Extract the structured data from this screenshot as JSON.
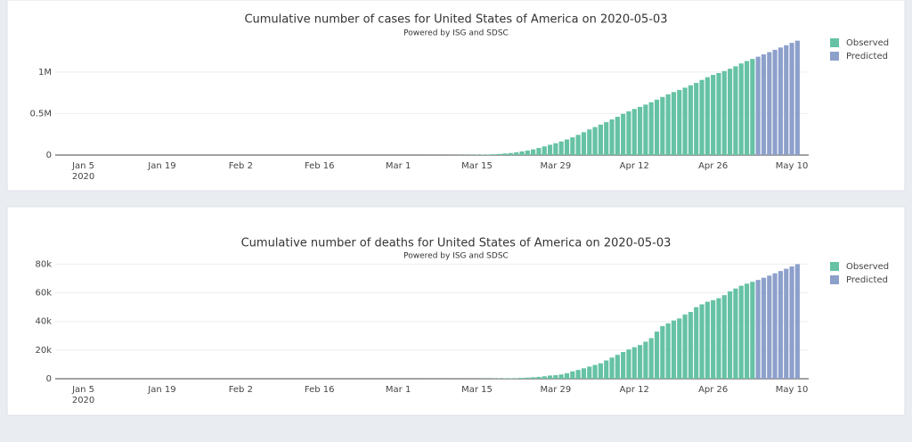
{
  "chart_data": [
    {
      "type": "bar",
      "title": "Cumulative number of cases for United States of America on 2020-05-03",
      "subtitle": "Powered by ISG and SDSC",
      "x": [
        "2020-03-01",
        "2020-03-02",
        "2020-03-03",
        "2020-03-04",
        "2020-03-05",
        "2020-03-06",
        "2020-03-07",
        "2020-03-08",
        "2020-03-09",
        "2020-03-10",
        "2020-03-11",
        "2020-03-12",
        "2020-03-13",
        "2020-03-14",
        "2020-03-15",
        "2020-03-16",
        "2020-03-17",
        "2020-03-18",
        "2020-03-19",
        "2020-03-20",
        "2020-03-21",
        "2020-03-22",
        "2020-03-23",
        "2020-03-24",
        "2020-03-25",
        "2020-03-26",
        "2020-03-27",
        "2020-03-28",
        "2020-03-29",
        "2020-03-30",
        "2020-03-31",
        "2020-04-01",
        "2020-04-02",
        "2020-04-03",
        "2020-04-04",
        "2020-04-05",
        "2020-04-06",
        "2020-04-07",
        "2020-04-08",
        "2020-04-09",
        "2020-04-10",
        "2020-04-11",
        "2020-04-12",
        "2020-04-13",
        "2020-04-14",
        "2020-04-15",
        "2020-04-16",
        "2020-04-17",
        "2020-04-18",
        "2020-04-19",
        "2020-04-20",
        "2020-04-21",
        "2020-04-22",
        "2020-04-23",
        "2020-04-24",
        "2020-04-25",
        "2020-04-26",
        "2020-04-27",
        "2020-04-28",
        "2020-04-29",
        "2020-04-30",
        "2020-05-01",
        "2020-05-02",
        "2020-05-03",
        "2020-05-04",
        "2020-05-05",
        "2020-05-06",
        "2020-05-07",
        "2020-05-08",
        "2020-05-09",
        "2020-05-10",
        "2020-05-11"
      ],
      "series": [
        {
          "name": "Observed",
          "color": "#66c2a5",
          "values": [
            75,
            100,
            124,
            158,
            221,
            319,
            435,
            541,
            704,
            994,
            1301,
            1630,
            2183,
            2770,
            3613,
            4596,
            6344,
            9197,
            13779,
            19367,
            24192,
            33592,
            43781,
            54856,
            68211,
            85435,
            104126,
            123578,
            142460,
            163955,
            188172,
            213372,
            243453,
            275586,
            308850,
            337072,
            366667,
            396223,
            429052,
            461437,
            496535,
            526396,
            555313,
            580619,
            607670,
            636350,
            667592,
            699706,
            732197,
            759086,
            784326,
            811865,
            840351,
            869170,
            905358,
            938154,
            965785,
            988197,
            1012582,
            1039909,
            1069424,
            1103461,
            1132539,
            1158040,
            null,
            null,
            null,
            null,
            null,
            null,
            null,
            null
          ]
        },
        {
          "name": "Predicted",
          "color": "#8da0cb",
          "values": [
            null,
            null,
            null,
            null,
            null,
            null,
            null,
            null,
            null,
            null,
            null,
            null,
            null,
            null,
            null,
            null,
            null,
            null,
            null,
            null,
            null,
            null,
            null,
            null,
            null,
            null,
            null,
            null,
            null,
            null,
            null,
            null,
            null,
            null,
            null,
            null,
            null,
            null,
            null,
            null,
            null,
            null,
            null,
            null,
            null,
            null,
            null,
            null,
            null,
            null,
            null,
            null,
            null,
            null,
            null,
            null,
            null,
            null,
            null,
            null,
            null,
            null,
            null,
            null,
            1185000,
            1213000,
            1240000,
            1268000,
            1296000,
            1323000,
            1351000,
            1378000
          ]
        }
      ],
      "xlim": [
        "2019-12-31",
        "2020-05-13"
      ],
      "xticks": [
        {
          "value": "2020-01-05",
          "label": "Jan 5"
        },
        {
          "value": "2020-01-19",
          "label": "Jan 19"
        },
        {
          "value": "2020-02-02",
          "label": "Feb 2"
        },
        {
          "value": "2020-02-16",
          "label": "Feb 16"
        },
        {
          "value": "2020-03-01",
          "label": "Mar 1"
        },
        {
          "value": "2020-03-15",
          "label": "Mar 15"
        },
        {
          "value": "2020-03-29",
          "label": "Mar 29"
        },
        {
          "value": "2020-04-12",
          "label": "Apr 12"
        },
        {
          "value": "2020-04-26",
          "label": "Apr 26"
        },
        {
          "value": "2020-05-10",
          "label": "May 10"
        }
      ],
      "x_year_label": "2020",
      "ylim": [
        0,
        1460000
      ],
      "yticks": [
        0,
        {
          "value": 500000,
          "label": "0.5M"
        },
        {
          "value": 1000000,
          "label": "1M"
        }
      ],
      "grid": true,
      "legend": "right"
    },
    {
      "type": "bar",
      "title": "Cumulative number of deaths for United States of America on 2020-05-03",
      "subtitle": "Powered by ISG and SDSC",
      "x": [
        "2020-03-01",
        "2020-03-02",
        "2020-03-03",
        "2020-03-04",
        "2020-03-05",
        "2020-03-06",
        "2020-03-07",
        "2020-03-08",
        "2020-03-09",
        "2020-03-10",
        "2020-03-11",
        "2020-03-12",
        "2020-03-13",
        "2020-03-14",
        "2020-03-15",
        "2020-03-16",
        "2020-03-17",
        "2020-03-18",
        "2020-03-19",
        "2020-03-20",
        "2020-03-21",
        "2020-03-22",
        "2020-03-23",
        "2020-03-24",
        "2020-03-25",
        "2020-03-26",
        "2020-03-27",
        "2020-03-28",
        "2020-03-29",
        "2020-03-30",
        "2020-03-31",
        "2020-04-01",
        "2020-04-02",
        "2020-04-03",
        "2020-04-04",
        "2020-04-05",
        "2020-04-06",
        "2020-04-07",
        "2020-04-08",
        "2020-04-09",
        "2020-04-10",
        "2020-04-11",
        "2020-04-12",
        "2020-04-13",
        "2020-04-14",
        "2020-04-15",
        "2020-04-16",
        "2020-04-17",
        "2020-04-18",
        "2020-04-19",
        "2020-04-20",
        "2020-04-21",
        "2020-04-22",
        "2020-04-23",
        "2020-04-24",
        "2020-04-25",
        "2020-04-26",
        "2020-04-27",
        "2020-04-28",
        "2020-04-29",
        "2020-04-30",
        "2020-05-01",
        "2020-05-02",
        "2020-05-03",
        "2020-05-04",
        "2020-05-05",
        "2020-05-06",
        "2020-05-07",
        "2020-05-08",
        "2020-05-09",
        "2020-05-10",
        "2020-05-11"
      ],
      "series": [
        {
          "name": "Observed",
          "color": "#66c2a5",
          "values": [
            1,
            6,
            9,
            11,
            12,
            15,
            19,
            22,
            26,
            30,
            38,
            41,
            48,
            57,
            68,
            86,
            109,
            150,
            207,
            256,
            302,
            414,
            552,
            780,
            1027,
            1295,
            1695,
            2221,
            2467,
            2978,
            3873,
            5140,
            6134,
            7257,
            8477,
            9619,
            10783,
            12768,
            14788,
            16683,
            18653,
            20444,
            22020,
            23529,
            25832,
            28325,
            32916,
            36773,
            38664,
            40661,
            42094,
            44845,
            46622,
            49954,
            51949,
            53755,
            54881,
            56219,
            58355,
            60967,
            62996,
            64943,
            66369,
            67682,
            null,
            null,
            null,
            null,
            null,
            null,
            null,
            null
          ]
        },
        {
          "name": "Predicted",
          "color": "#8da0cb",
          "values": [
            null,
            null,
            null,
            null,
            null,
            null,
            null,
            null,
            null,
            null,
            null,
            null,
            null,
            null,
            null,
            null,
            null,
            null,
            null,
            null,
            null,
            null,
            null,
            null,
            null,
            null,
            null,
            null,
            null,
            null,
            null,
            null,
            null,
            null,
            null,
            null,
            null,
            null,
            null,
            null,
            null,
            null,
            null,
            null,
            null,
            null,
            null,
            null,
            null,
            null,
            null,
            null,
            null,
            null,
            null,
            null,
            null,
            null,
            null,
            null,
            null,
            null,
            null,
            null,
            69000,
            70500,
            72000,
            73600,
            75200,
            76800,
            78400,
            80000
          ]
        }
      ],
      "xlim": [
        "2019-12-31",
        "2020-05-13"
      ],
      "xticks": [
        {
          "value": "2020-01-05",
          "label": "Jan 5"
        },
        {
          "value": "2020-01-19",
          "label": "Jan 19"
        },
        {
          "value": "2020-02-02",
          "label": "Feb 2"
        },
        {
          "value": "2020-02-16",
          "label": "Feb 16"
        },
        {
          "value": "2020-03-01",
          "label": "Mar 1"
        },
        {
          "value": "2020-03-15",
          "label": "Mar 15"
        },
        {
          "value": "2020-03-29",
          "label": "Mar 29"
        },
        {
          "value": "2020-04-12",
          "label": "Apr 12"
        },
        {
          "value": "2020-04-26",
          "label": "Apr 26"
        },
        {
          "value": "2020-05-10",
          "label": "May 10"
        }
      ],
      "x_year_label": "2020",
      "ylim": [
        0,
        84000
      ],
      "yticks": [
        0,
        {
          "value": 20000,
          "label": "20k"
        },
        {
          "value": 40000,
          "label": "40k"
        },
        {
          "value": 60000,
          "label": "60k"
        },
        {
          "value": 80000,
          "label": "80k"
        }
      ],
      "grid": true,
      "legend": "right"
    }
  ]
}
